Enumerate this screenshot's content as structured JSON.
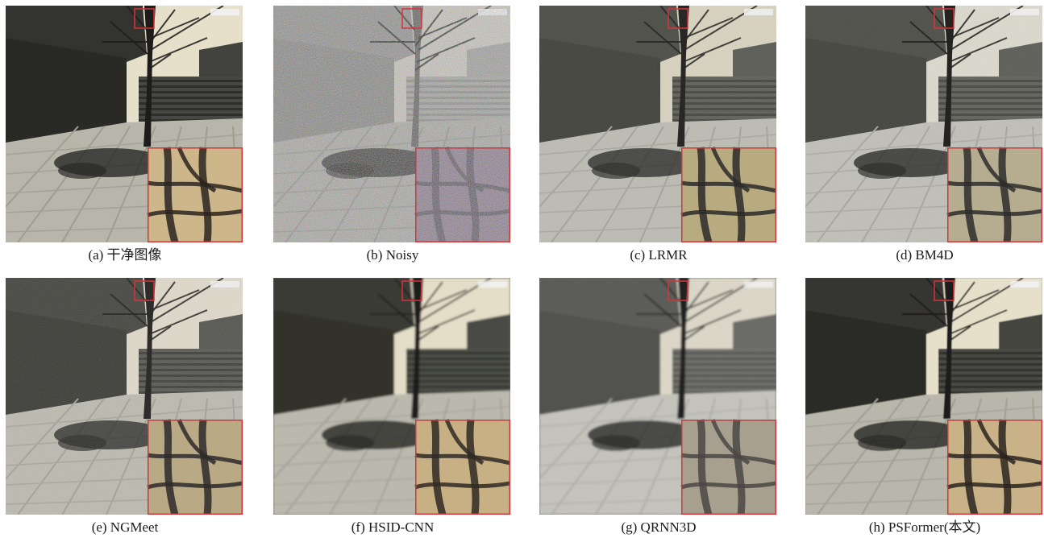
{
  "figure": {
    "panels": [
      {
        "caption": "(a) 干净图像",
        "variant": "clean"
      },
      {
        "caption": "(b) Noisy",
        "variant": "noisy"
      },
      {
        "caption": "(c) LRMR",
        "variant": "lrmr"
      },
      {
        "caption": "(d) BM4D",
        "variant": "bm4d"
      },
      {
        "caption": "(e) NGMeet",
        "variant": "ngmeet"
      },
      {
        "caption": "(f) HSID-CNN",
        "variant": "hsid"
      },
      {
        "caption": "(g) QRNN3D",
        "variant": "qrnn"
      },
      {
        "caption": "(h) PSFormer(本文)",
        "variant": "psformer"
      }
    ],
    "colors": {
      "zoom_box": "#d9333a",
      "sky": "#e8e2cf",
      "wall": "#3c3d38",
      "ground": "#b9b8b0",
      "tree": "#1d1c1a",
      "zoom_bg": "#c9b48c"
    }
  }
}
